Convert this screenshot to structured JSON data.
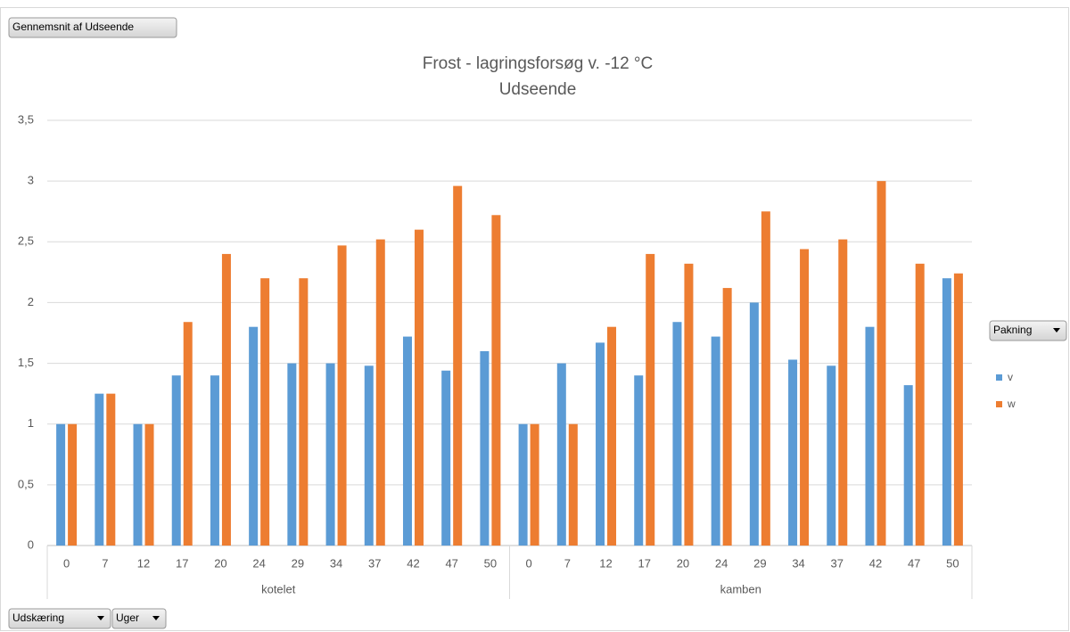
{
  "chart_data": {
    "type": "bar",
    "title": "Frost - lagringsforsøg v. -12 °C",
    "subtitle": "Udseende",
    "value_field": "Gennemsnit af Udseende",
    "legend_field": "Pakning",
    "axis_fields": [
      "Udskæring",
      "Uger"
    ],
    "categories": [
      "0",
      "7",
      "12",
      "17",
      "20",
      "24",
      "29",
      "34",
      "37",
      "42",
      "47",
      "50",
      "0",
      "7",
      "12",
      "17",
      "20",
      "24",
      "29",
      "34",
      "37",
      "42",
      "47",
      "50"
    ],
    "group_labels": [
      "kotelet",
      "kamben"
    ],
    "series": [
      {
        "name": "v",
        "color": "#5b9bd5",
        "values": [
          1,
          1.25,
          1,
          1.4,
          1.4,
          1.8,
          1.5,
          1.5,
          1.48,
          1.72,
          1.44,
          1.6,
          1,
          1.5,
          1.67,
          1.4,
          1.84,
          1.72,
          2,
          1.53,
          1.48,
          1.8,
          1.32,
          2.2
        ]
      },
      {
        "name": "w",
        "color": "#ed7d31",
        "values": [
          1,
          1.25,
          1,
          1.84,
          2.4,
          2.2,
          2.2,
          2.47,
          2.52,
          2.6,
          2.96,
          2.72,
          1,
          1,
          1.8,
          2.4,
          2.32,
          2.12,
          2.75,
          2.44,
          2.52,
          3,
          2.32,
          2.24
        ]
      }
    ],
    "ylim": [
      0,
      3.5
    ],
    "yticks": [
      0,
      {
        "value": 0.5,
        "label": "0,5"
      },
      1,
      {
        "value": 1.5,
        "label": "1,5"
      },
      2,
      {
        "value": 2.5,
        "label": "2,5"
      },
      3,
      {
        "value": 3.5,
        "label": "3,5"
      }
    ],
    "grid": true,
    "legend": "right"
  }
}
